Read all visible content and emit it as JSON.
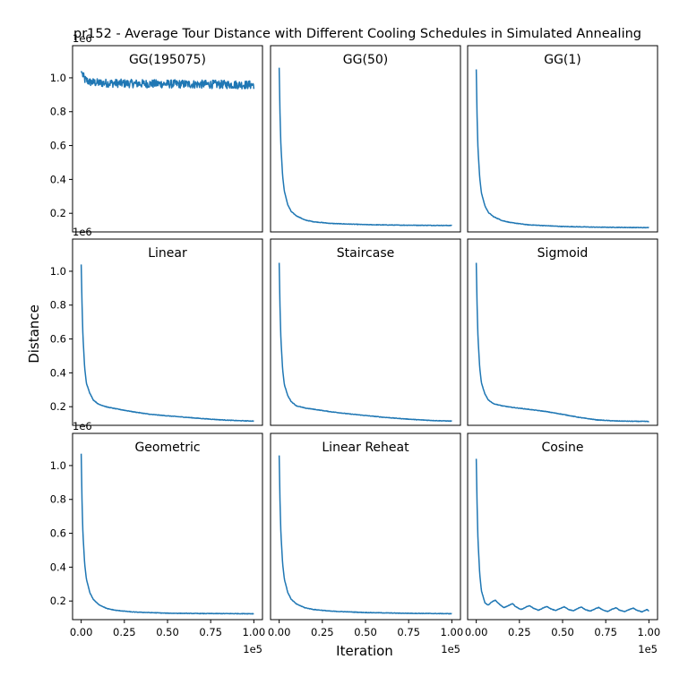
{
  "figure": {
    "suptitle": "pr152 - Average Tour Distance with Different Cooling Schedules in Simulated Annealing",
    "xlabel": "Iteration",
    "ylabel": "Distance",
    "line_color": "#1f77b4"
  },
  "chart_data": {
    "type": "line",
    "grid": false,
    "sharex": true,
    "sharey": true,
    "xlim": [
      -5000,
      105000
    ],
    "ylim": [
      90000,
      1190000
    ],
    "x_ticks": [
      0,
      25000,
      50000,
      75000,
      100000
    ],
    "x_tick_labels": [
      "0.00",
      "0.25",
      "0.50",
      "0.75",
      "1.00"
    ],
    "x_offset_label": "1e5",
    "y_ticks": [
      200000,
      400000,
      600000,
      800000,
      1000000
    ],
    "y_tick_labels": [
      "0.2",
      "0.4",
      "0.6",
      "0.8",
      "1.0"
    ],
    "y_offset_label": "1e6",
    "panels": [
      {
        "title": "GG(195075)",
        "x": [
          0,
          2000,
          5000,
          10000,
          20000,
          30000,
          40000,
          50000,
          60000,
          70000,
          80000,
          90000,
          100000
        ],
        "y": [
          1040000,
          990000,
          975000,
          970000,
          968000,
          966000,
          965000,
          964000,
          963000,
          962000,
          961000,
          960000,
          958000
        ]
      },
      {
        "title": "GG(50)",
        "x": [
          0,
          500,
          1000,
          2000,
          3000,
          5000,
          7000,
          10000,
          15000,
          20000,
          30000,
          50000,
          70000,
          100000
        ],
        "y": [
          1060000,
          780000,
          600000,
          420000,
          330000,
          250000,
          210000,
          185000,
          160000,
          150000,
          140000,
          133000,
          130000,
          128000
        ]
      },
      {
        "title": "GG(1)",
        "x": [
          0,
          500,
          1000,
          2000,
          3000,
          5000,
          7000,
          10000,
          15000,
          20000,
          30000,
          50000,
          70000,
          100000
        ],
        "y": [
          1050000,
          760000,
          580000,
          410000,
          320000,
          245000,
          205000,
          180000,
          157000,
          145000,
          132000,
          122000,
          118000,
          115000
        ]
      },
      {
        "title": "Linear",
        "x": [
          0,
          500,
          1000,
          2000,
          3000,
          5000,
          7000,
          10000,
          15000,
          20000,
          30000,
          40000,
          50000,
          60000,
          70000,
          80000,
          90000,
          100000
        ],
        "y": [
          1040000,
          800000,
          620000,
          430000,
          340000,
          280000,
          240000,
          215000,
          198000,
          188000,
          170000,
          155000,
          146000,
          138000,
          130000,
          123000,
          118000,
          115000
        ]
      },
      {
        "title": "Staircase",
        "x": [
          0,
          500,
          1000,
          2000,
          3000,
          5000,
          7000,
          10000,
          15000,
          20000,
          30000,
          40000,
          50000,
          60000,
          70000,
          80000,
          90000,
          100000
        ],
        "y": [
          1050000,
          780000,
          600000,
          420000,
          330000,
          265000,
          230000,
          205000,
          192000,
          185000,
          170000,
          158000,
          148000,
          138000,
          130000,
          123000,
          118000,
          115000
        ]
      },
      {
        "title": "Sigmoid",
        "x": [
          0,
          500,
          1000,
          2000,
          3000,
          5000,
          7000,
          10000,
          15000,
          20000,
          30000,
          40000,
          50000,
          60000,
          70000,
          80000,
          90000,
          100000
        ],
        "y": [
          1050000,
          790000,
          610000,
          430000,
          340000,
          275000,
          240000,
          218000,
          205000,
          197000,
          185000,
          172000,
          155000,
          136000,
          122000,
          116000,
          114000,
          113000
        ]
      },
      {
        "title": "Geometric",
        "x": [
          0,
          500,
          1000,
          2000,
          3000,
          5000,
          7000,
          10000,
          15000,
          20000,
          30000,
          50000,
          70000,
          100000
        ],
        "y": [
          1070000,
          780000,
          600000,
          420000,
          330000,
          250000,
          210000,
          180000,
          155000,
          145000,
          135000,
          128000,
          126000,
          125000
        ]
      },
      {
        "title": "Linear Reheat",
        "x": [
          0,
          500,
          1000,
          2000,
          3000,
          5000,
          7000,
          10000,
          15000,
          20000,
          30000,
          50000,
          70000,
          100000
        ],
        "y": [
          1060000,
          780000,
          600000,
          420000,
          330000,
          250000,
          210000,
          182000,
          160000,
          150000,
          140000,
          132000,
          128000,
          125000
        ]
      },
      {
        "title": "Cosine",
        "x": [
          0,
          500,
          1000,
          2000,
          3000,
          5000,
          7000,
          9000,
          11000,
          13000,
          16000,
          19000,
          21000,
          23000,
          26000,
          29000,
          31000,
          33000,
          36000,
          39000,
          41000,
          43000,
          46000,
          49000,
          51000,
          53000,
          56000,
          59000,
          61000,
          63000,
          66000,
          69000,
          71000,
          73000,
          76000,
          79000,
          81000,
          83000,
          86000,
          89000,
          91000,
          93000,
          96000,
          99000,
          100000
        ],
        "y": [
          1040000,
          760000,
          560000,
          360000,
          260000,
          190000,
          175000,
          195000,
          205000,
          185000,
          160000,
          175000,
          185000,
          165000,
          150000,
          165000,
          172000,
          158000,
          145000,
          160000,
          168000,
          155000,
          143000,
          158000,
          166000,
          152000,
          142000,
          157000,
          164000,
          150000,
          140000,
          155000,
          162000,
          148000,
          138000,
          153000,
          160000,
          146000,
          137000,
          152000,
          158000,
          145000,
          136000,
          150000,
          140000
        ]
      }
    ]
  }
}
